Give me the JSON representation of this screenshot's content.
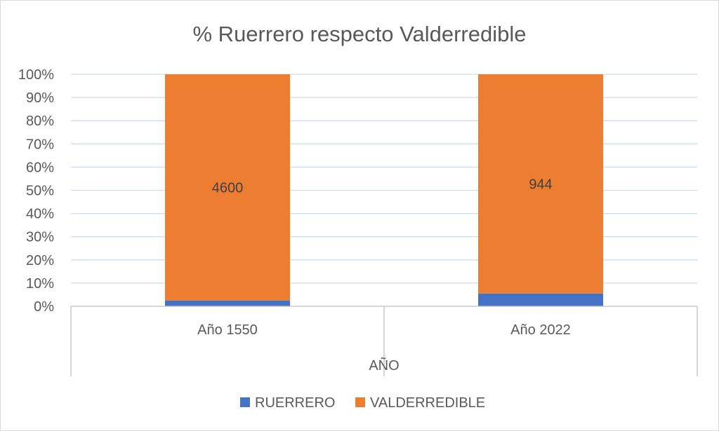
{
  "chart_data": {
    "type": "bar",
    "stacked": true,
    "normalized": true,
    "title": "% Ruerrero respecto Valderredible",
    "xlabel": "AÑO",
    "ylabel": "",
    "categories": [
      "Año 1550",
      "Año 2022"
    ],
    "series": [
      {
        "name": "RUERRERO",
        "color": "#4472c4",
        "percent": [
          2.5,
          5.5
        ]
      },
      {
        "name": "VALDERREDIBLE",
        "color": "#ed7d31",
        "percent": [
          97.5,
          94.5
        ],
        "data_labels": [
          "4600",
          "944"
        ]
      }
    ],
    "ylim": [
      0,
      100
    ],
    "yticks": [
      "0%",
      "10%",
      "20%",
      "30%",
      "40%",
      "50%",
      "60%",
      "70%",
      "80%",
      "90%",
      "100%"
    ],
    "grid": true,
    "legend_position": "bottom"
  }
}
